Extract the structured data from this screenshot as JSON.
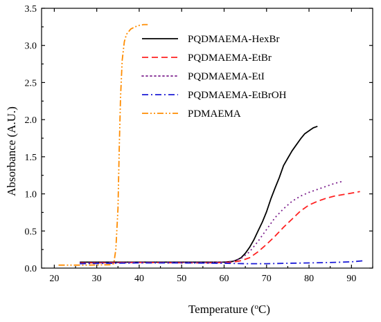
{
  "chart_data": {
    "type": "line",
    "title": "",
    "xlabel_main": "Temperature (",
    "xlabel_sup": "o",
    "xlabel_tail": "C)",
    "ylabel": "Absorbance (A.U.)",
    "xlim": [
      17,
      95
    ],
    "ylim": [
      0,
      3.5
    ],
    "x_ticks": [
      20,
      30,
      40,
      50,
      60,
      70,
      80,
      90
    ],
    "y_ticks": [
      "0.0",
      "0.5",
      "1.0",
      "1.5",
      "2.0",
      "2.5",
      "3.0",
      "3.5"
    ],
    "y_tick_values": [
      0,
      0.5,
      1.0,
      1.5,
      2.0,
      2.5,
      3.0,
      3.5
    ],
    "legend_position": "top-right",
    "grid": false,
    "series": [
      {
        "name": "PQDMAEMA-HexBr",
        "color": "#000000",
        "dash": "solid",
        "points": [
          [
            26,
            0.08
          ],
          [
            40,
            0.08
          ],
          [
            55,
            0.08
          ],
          [
            60,
            0.08
          ],
          [
            62,
            0.09
          ],
          [
            63,
            0.11
          ],
          [
            64,
            0.14
          ],
          [
            65,
            0.2
          ],
          [
            66,
            0.28
          ],
          [
            67,
            0.38
          ],
          [
            68,
            0.5
          ],
          [
            69,
            0.62
          ],
          [
            70,
            0.76
          ],
          [
            71,
            0.93
          ],
          [
            72,
            1.08
          ],
          [
            73,
            1.22
          ],
          [
            74,
            1.38
          ],
          [
            75,
            1.48
          ],
          [
            76,
            1.58
          ],
          [
            77,
            1.66
          ],
          [
            78,
            1.74
          ],
          [
            79,
            1.81
          ],
          [
            80,
            1.85
          ],
          [
            81,
            1.89
          ],
          [
            82,
            1.91
          ]
        ]
      },
      {
        "name": "PQDMAEMA-EtBr",
        "color": "#ff2020",
        "dash": "dashed",
        "points": [
          [
            26,
            0.07
          ],
          [
            40,
            0.075
          ],
          [
            55,
            0.07
          ],
          [
            60,
            0.075
          ],
          [
            62,
            0.08
          ],
          [
            64,
            0.1
          ],
          [
            66,
            0.14
          ],
          [
            68,
            0.22
          ],
          [
            70,
            0.32
          ],
          [
            72,
            0.43
          ],
          [
            74,
            0.55
          ],
          [
            76,
            0.66
          ],
          [
            78,
            0.77
          ],
          [
            80,
            0.85
          ],
          [
            82,
            0.9
          ],
          [
            84,
            0.94
          ],
          [
            86,
            0.97
          ],
          [
            88,
            0.99
          ],
          [
            90,
            1.01
          ],
          [
            92,
            1.03
          ]
        ]
      },
      {
        "name": "PQDMAEMA-EtI",
        "color": "#7b1e8c",
        "dash": "dotted",
        "points": [
          [
            26,
            0.07
          ],
          [
            40,
            0.075
          ],
          [
            55,
            0.075
          ],
          [
            60,
            0.08
          ],
          [
            62,
            0.09
          ],
          [
            64,
            0.13
          ],
          [
            66,
            0.22
          ],
          [
            68,
            0.36
          ],
          [
            70,
            0.52
          ],
          [
            72,
            0.68
          ],
          [
            74,
            0.8
          ],
          [
            76,
            0.9
          ],
          [
            78,
            0.97
          ],
          [
            80,
            1.02
          ],
          [
            82,
            1.06
          ],
          [
            84,
            1.1
          ],
          [
            86,
            1.14
          ],
          [
            88,
            1.17
          ]
        ]
      },
      {
        "name": "PQDMAEMA-EtBrOH",
        "color": "#1a1ad6",
        "dash": "dashdot",
        "points": [
          [
            26,
            0.06
          ],
          [
            40,
            0.07
          ],
          [
            50,
            0.07
          ],
          [
            60,
            0.065
          ],
          [
            65,
            0.06
          ],
          [
            70,
            0.06
          ],
          [
            75,
            0.065
          ],
          [
            80,
            0.07
          ],
          [
            85,
            0.075
          ],
          [
            90,
            0.085
          ],
          [
            93,
            0.1
          ]
        ]
      },
      {
        "name": "PDMAEMA",
        "color": "#ff8c00",
        "dash": "dashdotdot",
        "points": [
          [
            21,
            0.04
          ],
          [
            28,
            0.04
          ],
          [
            33,
            0.045
          ],
          [
            34,
            0.06
          ],
          [
            34.5,
            0.25
          ],
          [
            35,
            0.8
          ],
          [
            35.3,
            1.6
          ],
          [
            35.6,
            2.3
          ],
          [
            36,
            2.8
          ],
          [
            36.5,
            3.05
          ],
          [
            37,
            3.15
          ],
          [
            38,
            3.22
          ],
          [
            39,
            3.25
          ],
          [
            40,
            3.27
          ],
          [
            41,
            3.28
          ],
          [
            42,
            3.28
          ]
        ]
      }
    ]
  }
}
